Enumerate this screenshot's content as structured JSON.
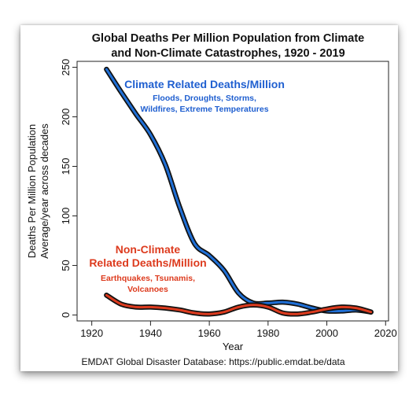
{
  "chart_data": {
    "type": "line",
    "title_line1": "Global Deaths Per Million Population from Climate",
    "title_line2": "and Non-Climate Catastrophes, 1920 - 2019",
    "xlabel": "Year",
    "ylabel_line1": "Deaths Per Million Population",
    "ylabel_line2": "Average/year across decades",
    "source": "EMDAT Global Disaster Database: https://public.emdat.be/data",
    "xlim": [
      1915,
      2021
    ],
    "ylim": [
      -6,
      256
    ],
    "xticks": [
      1920,
      1940,
      1960,
      1980,
      2000,
      2020
    ],
    "yticks": [
      0,
      50,
      100,
      150,
      200,
      250
    ],
    "series": [
      {
        "name": "Climate Related Deaths/Million",
        "color": "#1f6fd6",
        "x": [
          1925,
          1930,
          1935,
          1940,
          1945,
          1950,
          1955,
          1960,
          1965,
          1970,
          1975,
          1980,
          1985,
          1990,
          1995,
          2000,
          2005,
          2010,
          2015
        ],
        "y": [
          248,
          225,
          203,
          182,
          152,
          108,
          72,
          60,
          45,
          22,
          12,
          12,
          13,
          11,
          7,
          4,
          4,
          5,
          3
        ]
      },
      {
        "name": "Non-Climate Related Deaths/Million",
        "color": "#dd3b1e",
        "x": [
          1925,
          1930,
          1935,
          1940,
          1945,
          1950,
          1955,
          1960,
          1965,
          1970,
          1975,
          1980,
          1985,
          1990,
          1995,
          2000,
          2005,
          2010,
          2015
        ],
        "y": [
          20,
          11,
          8,
          8,
          7,
          5,
          2,
          1,
          3,
          8,
          10,
          8,
          2,
          1,
          3,
          6,
          8,
          7,
          3
        ]
      }
    ],
    "annotations": {
      "climate_title": "Climate Related Deaths/Million",
      "climate_line1": "Floods, Droughts, Storms,",
      "climate_line2": "Wildfires, Extreme Temperatures",
      "nonclimate_title1": "Non-Climate",
      "nonclimate_title2": "Related Deaths/Million",
      "nonclimate_line1": "Earthquakes, Tsunamis,",
      "nonclimate_line2": "Volcanoes"
    }
  }
}
